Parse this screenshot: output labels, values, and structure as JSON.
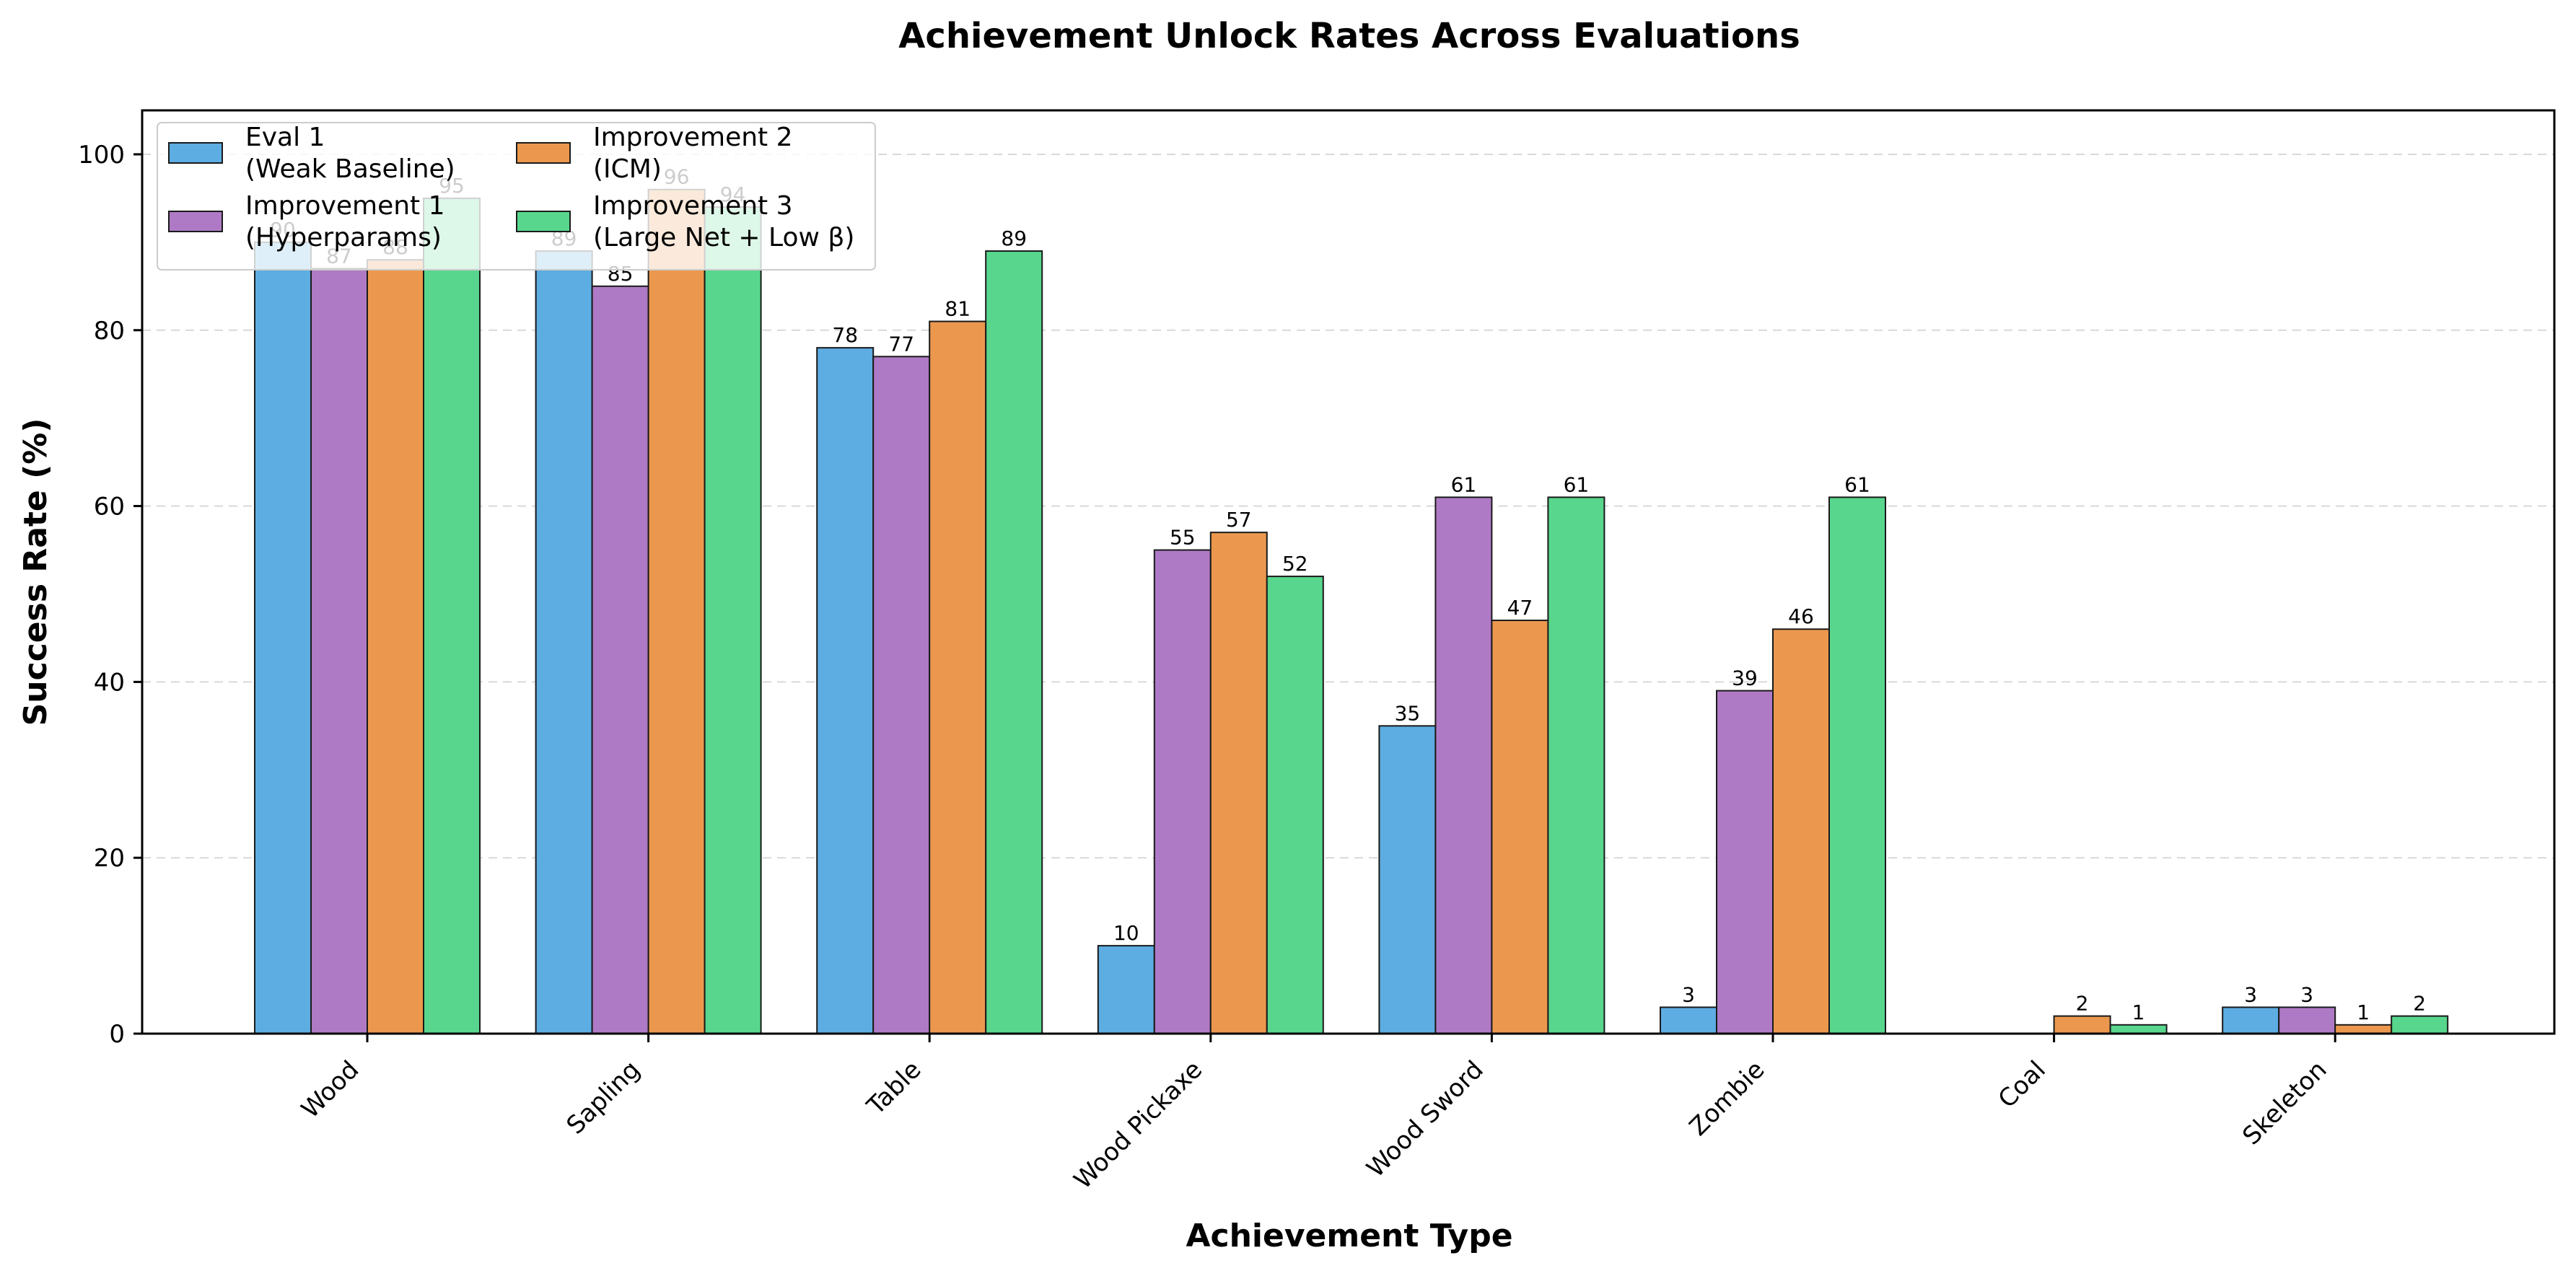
{
  "chart_data": {
    "type": "bar",
    "title": "Achievement Unlock Rates Across Evaluations",
    "xlabel": "Achievement Type",
    "ylabel": "Success Rate (%)",
    "ylim": [
      0,
      105
    ],
    "yticks": [
      0,
      20,
      40,
      60,
      80,
      100
    ],
    "grid": true,
    "legend_position": "upper-left",
    "categories": [
      "Wood",
      "Sapling",
      "Table",
      "Wood Pickaxe",
      "Wood Sword",
      "Zombie",
      "Coal",
      "Skeleton"
    ],
    "series": [
      {
        "name": "Eval 1\n(Weak Baseline)",
        "color": "#5DADE2",
        "values": [
          90,
          89,
          78,
          10,
          35,
          3,
          0,
          3
        ]
      },
      {
        "name": "Improvement 1\n(Hyperparams)",
        "color": "#AF7AC5",
        "values": [
          87,
          85,
          77,
          55,
          61,
          39,
          0,
          3
        ]
      },
      {
        "name": "Improvement 2\n(ICM)",
        "color": "#EB984E",
        "values": [
          88,
          96,
          81,
          57,
          47,
          46,
          2,
          1
        ]
      },
      {
        "name": "Improvement 3\n(Large Net + Low β)",
        "color": "#58D68D",
        "values": [
          95,
          94,
          89,
          52,
          61,
          61,
          1,
          2
        ]
      }
    ]
  }
}
